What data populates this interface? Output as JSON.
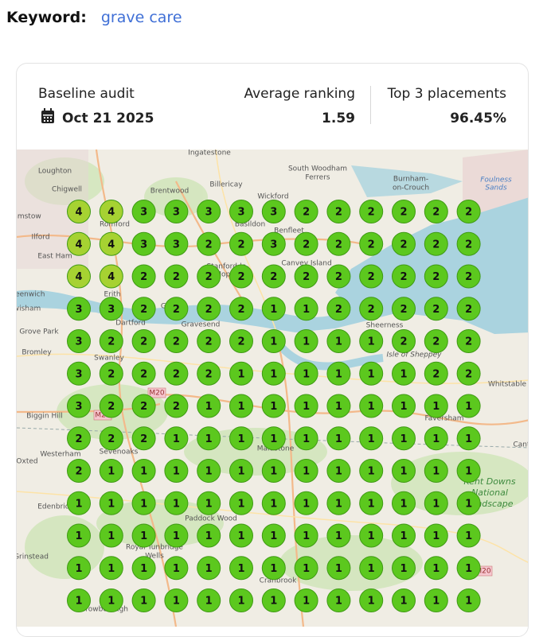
{
  "keyword": {
    "label": "Keyword:",
    "value": "grave care"
  },
  "audit": {
    "title": "Baseline audit",
    "date": "Oct 21 2025"
  },
  "stats": [
    {
      "label": "Average ranking",
      "value": 1.59
    },
    {
      "label": "Top 3 placements",
      "value": "96.45%"
    }
  ],
  "grid": {
    "colors": {
      "1": "#5cc81e",
      "2": "#5cc81e",
      "3": "#5cc81e",
      "4": "#a6d232"
    },
    "rows": [
      [
        4,
        4,
        3,
        3,
        3,
        3,
        3,
        2,
        2,
        2,
        2,
        2,
        2
      ],
      [
        4,
        4,
        3,
        3,
        2,
        2,
        3,
        2,
        2,
        2,
        2,
        2,
        2
      ],
      [
        4,
        4,
        2,
        2,
        2,
        2,
        2,
        2,
        2,
        2,
        2,
        2,
        2
      ],
      [
        3,
        3,
        2,
        2,
        2,
        2,
        1,
        1,
        2,
        2,
        2,
        2,
        2
      ],
      [
        3,
        2,
        2,
        2,
        2,
        2,
        1,
        1,
        1,
        1,
        2,
        2,
        2
      ],
      [
        3,
        2,
        2,
        2,
        2,
        1,
        1,
        1,
        1,
        1,
        1,
        2,
        2
      ],
      [
        3,
        2,
        2,
        2,
        1,
        1,
        1,
        1,
        1,
        1,
        1,
        1,
        1
      ],
      [
        2,
        2,
        2,
        1,
        1,
        1,
        1,
        1,
        1,
        1,
        1,
        1,
        1
      ],
      [
        2,
        1,
        1,
        1,
        1,
        1,
        1,
        1,
        1,
        1,
        1,
        1,
        1
      ],
      [
        1,
        1,
        1,
        1,
        1,
        1,
        1,
        1,
        1,
        1,
        1,
        1,
        1
      ],
      [
        1,
        1,
        1,
        1,
        1,
        1,
        1,
        1,
        1,
        1,
        1,
        1,
        1
      ],
      [
        1,
        1,
        1,
        1,
        1,
        1,
        1,
        1,
        1,
        1,
        1,
        1,
        1
      ],
      [
        1,
        1,
        1,
        1,
        1,
        1,
        1,
        1,
        1,
        1,
        1,
        1,
        1
      ]
    ]
  },
  "map_labels": [
    "Ingatestone",
    "South Woodham",
    "Ferrers",
    "Burnham-",
    "on-Crouch",
    "Loughton",
    "Chigwell",
    "Brentwood",
    "Billericay",
    "Wickford",
    "Foulness",
    "Sands",
    "amstow",
    "Romford",
    "Basildon",
    "Benfleet",
    "Ilford",
    "East Ham",
    "Canvey Island",
    "Stanford-le-",
    "Hope",
    "reenwich",
    "Erith",
    "wisham",
    "Grays",
    "Dartford",
    "Gravesend",
    "Grove Park",
    "Sheerness",
    "Bromley",
    "Swanley",
    "Isle of Sheppey",
    "Whitstable",
    "M20",
    "Biggin Hill",
    "M25",
    "Faversham",
    "Westerham",
    "Sevenoaks",
    "Maidstone",
    "Cant",
    "Oxted",
    "Kent Downs",
    "National",
    "Landscape",
    "Edenbridge",
    "Paddock Wood",
    "Royal Tunbridge",
    "Wells",
    "Grinstead",
    "M20",
    "Cranbrook",
    "Crowborough"
  ]
}
